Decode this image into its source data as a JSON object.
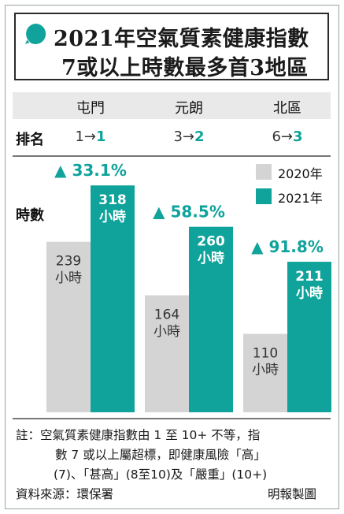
{
  "title": {
    "line1": "2021年空氣質素健康指數",
    "line2": "7或以上時數最多首3地區"
  },
  "rank_label": "排名",
  "y_label": "時數",
  "legend": [
    {
      "name": "2020年",
      "color": "#d4d4d4"
    },
    {
      "name": "2021年",
      "color": "#0fa39b"
    }
  ],
  "chart_data": {
    "type": "bar",
    "categories": [
      "屯門",
      "元朗",
      "北區"
    ],
    "ranks": [
      {
        "from": "1",
        "to": "1"
      },
      {
        "from": "3",
        "to": "2"
      },
      {
        "from": "6",
        "to": "3"
      }
    ],
    "series": [
      {
        "name": "2020年",
        "values": [
          239,
          164,
          110
        ],
        "labels": [
          "239\n小時",
          "164\n小時",
          "110\n小時"
        ]
      },
      {
        "name": "2021年",
        "values": [
          318,
          260,
          211
        ],
        "labels": [
          "318\n小時",
          "260\n小時",
          "211\n小時"
        ]
      }
    ],
    "changes": [
      "▲ 33.1%",
      "▲ 58.5%",
      "▲ 91.8%"
    ],
    "colors": {
      "y2020": "#d4d4d4",
      "y2021": "#0fa39b"
    }
  },
  "notes": {
    "line1": "註：空氣質素健康指數由 1 至 10+ 不等，指",
    "line2": "數 7 或以上屬超標，即健康風險「高」",
    "line3": "(7)、「甚高」(8至10)及「嚴重」(10+)",
    "source": "資料來源：環保署",
    "credit": "明報製圖"
  }
}
